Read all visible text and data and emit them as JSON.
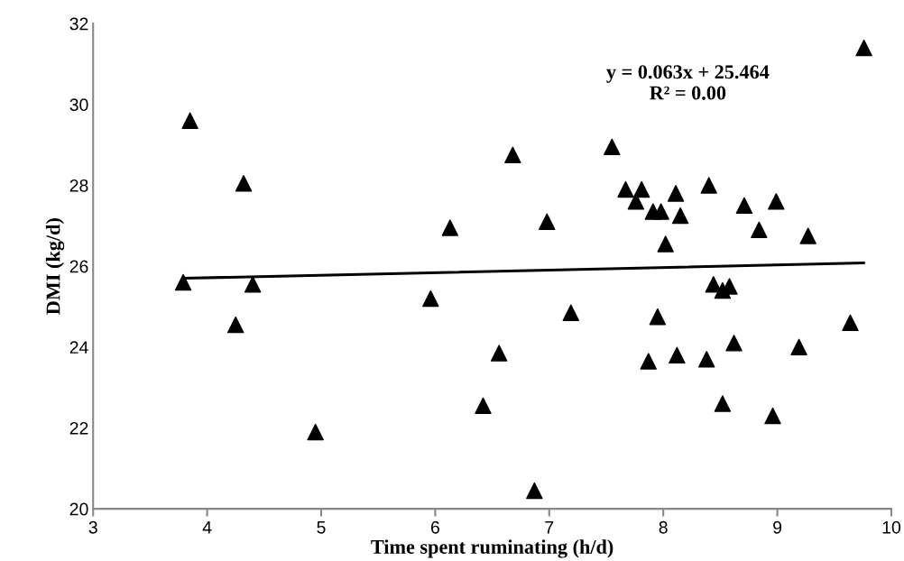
{
  "chart_data": {
    "type": "scatter",
    "xlabel": "Time spent ruminating (h/d)",
    "ylabel": "DMI (kg/d)",
    "xlim": [
      3,
      10
    ],
    "xticks": [
      3,
      4,
      5,
      6,
      7,
      8,
      9,
      10
    ],
    "ylim": [
      20,
      32
    ],
    "yticks": [
      20,
      22,
      24,
      26,
      28,
      30,
      32
    ],
    "grid": false,
    "legend": false,
    "annotations": [
      "y = 0.063x + 25.464\nR² = 0.00"
    ],
    "series": [
      {
        "marker": "triangle",
        "color": "#000000",
        "x": [
          3.79,
          3.85,
          4.25,
          4.32,
          4.4,
          4.95,
          5.96,
          6.13,
          6.42,
          6.56,
          6.68,
          6.87,
          6.98,
          7.19,
          7.55,
          7.67,
          7.76,
          7.81,
          7.87,
          7.91,
          7.95,
          7.98,
          8.02,
          8.11,
          8.12,
          8.15,
          8.38,
          8.4,
          8.44,
          8.52,
          8.52,
          8.58,
          8.62,
          8.71,
          8.84,
          8.96,
          8.99,
          9.19,
          9.27,
          9.64,
          9.76
        ],
        "values": [
          25.6,
          29.6,
          24.55,
          28.05,
          25.55,
          21.9,
          25.2,
          26.95,
          22.55,
          23.85,
          28.75,
          20.45,
          27.1,
          24.85,
          28.95,
          27.9,
          27.6,
          27.9,
          23.65,
          27.35,
          24.75,
          27.35,
          26.55,
          27.8,
          23.8,
          27.25,
          23.7,
          28.0,
          25.55,
          25.4,
          22.6,
          25.5,
          24.1,
          27.5,
          26.9,
          22.3,
          27.6,
          24.0,
          26.75,
          24.6,
          31.4
        ]
      },
      {
        "type": "line",
        "marker": "none",
        "color": "#000000",
        "x": [
          3.79,
          9.76
        ],
        "values": [
          25.7,
          26.08
        ]
      }
    ]
  }
}
